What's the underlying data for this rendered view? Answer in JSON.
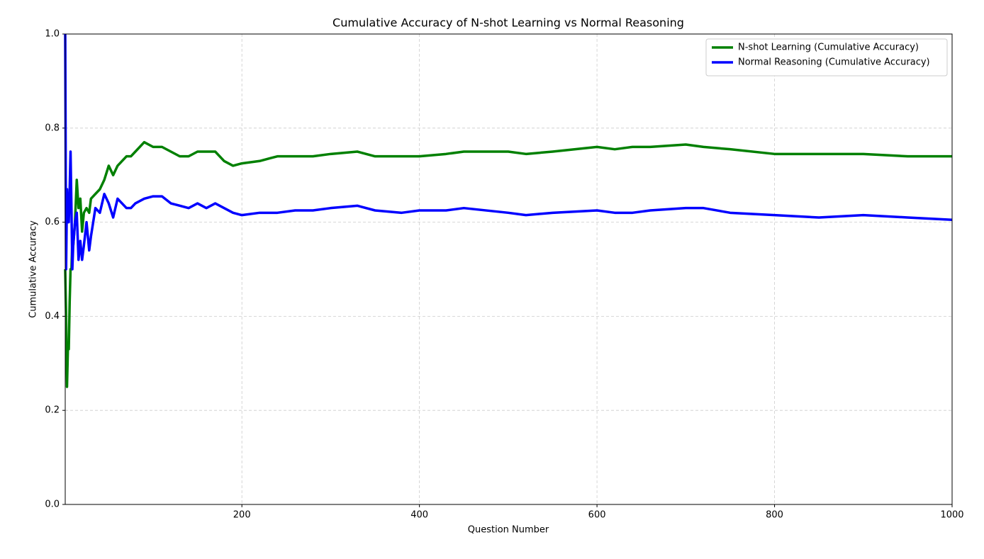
{
  "chart_data": {
    "type": "line",
    "title": "Cumulative Accuracy of N-shot Learning vs Normal Reasoning",
    "x_label": "Question Number",
    "y_label": "Cumulative Accuracy",
    "x": [
      1,
      2,
      3,
      4,
      5,
      6,
      7,
      8,
      9,
      10,
      12,
      14,
      16,
      18,
      20,
      22,
      25,
      28,
      30,
      35,
      40,
      45,
      50,
      55,
      60,
      65,
      70,
      75,
      80,
      90,
      100,
      110,
      120,
      130,
      140,
      150,
      160,
      170,
      180,
      190,
      200,
      220,
      240,
      260,
      280,
      300,
      330,
      350,
      380,
      400,
      430,
      450,
      500,
      520,
      550,
      600,
      620,
      640,
      660,
      700,
      720,
      750,
      800,
      850,
      900,
      950,
      1000
    ],
    "series": [
      {
        "name": "N-shot Learning (Cumulative Accuracy)",
        "color": "#008000",
        "values": [
          0.5,
          0.4,
          0.25,
          0.33,
          0.33,
          0.43,
          0.5,
          0.5,
          0.56,
          0.55,
          0.6,
          0.69,
          0.63,
          0.65,
          0.58,
          0.62,
          0.63,
          0.62,
          0.65,
          0.66,
          0.67,
          0.69,
          0.72,
          0.7,
          0.72,
          0.73,
          0.74,
          0.74,
          0.75,
          0.77,
          0.76,
          0.76,
          0.75,
          0.74,
          0.74,
          0.75,
          0.75,
          0.75,
          0.73,
          0.72,
          0.725,
          0.73,
          0.74,
          0.74,
          0.74,
          0.745,
          0.75,
          0.74,
          0.74,
          0.74,
          0.745,
          0.75,
          0.75,
          0.745,
          0.75,
          0.76,
          0.755,
          0.76,
          0.76,
          0.765,
          0.76,
          0.755,
          0.745,
          0.745,
          0.745,
          0.74,
          0.74
        ]
      },
      {
        "name": "Normal Reasoning (Cumulative Accuracy)",
        "color": "#0000ff",
        "values": [
          1.0,
          0.5,
          0.67,
          0.6,
          0.6,
          0.67,
          0.75,
          0.63,
          0.5,
          0.55,
          0.6,
          0.62,
          0.52,
          0.56,
          0.52,
          0.55,
          0.6,
          0.54,
          0.57,
          0.63,
          0.62,
          0.66,
          0.64,
          0.61,
          0.65,
          0.64,
          0.63,
          0.63,
          0.64,
          0.65,
          0.655,
          0.655,
          0.64,
          0.635,
          0.63,
          0.64,
          0.63,
          0.64,
          0.63,
          0.62,
          0.615,
          0.62,
          0.62,
          0.625,
          0.625,
          0.63,
          0.635,
          0.625,
          0.62,
          0.625,
          0.625,
          0.63,
          0.62,
          0.615,
          0.62,
          0.625,
          0.62,
          0.62,
          0.625,
          0.63,
          0.63,
          0.62,
          0.615,
          0.61,
          0.615,
          0.61,
          0.605
        ]
      }
    ],
    "xlim": [
      1,
      1000
    ],
    "xticks": [
      200,
      400,
      600,
      800,
      1000
    ],
    "ylim": [
      0,
      1
    ],
    "yticks": [
      {
        "value": 0,
        "label": "0.0"
      },
      0.2,
      0.4,
      0.6,
      0.8,
      {
        "value": 1,
        "label": "1.0"
      }
    ],
    "grid": true,
    "legend": "upper right"
  }
}
